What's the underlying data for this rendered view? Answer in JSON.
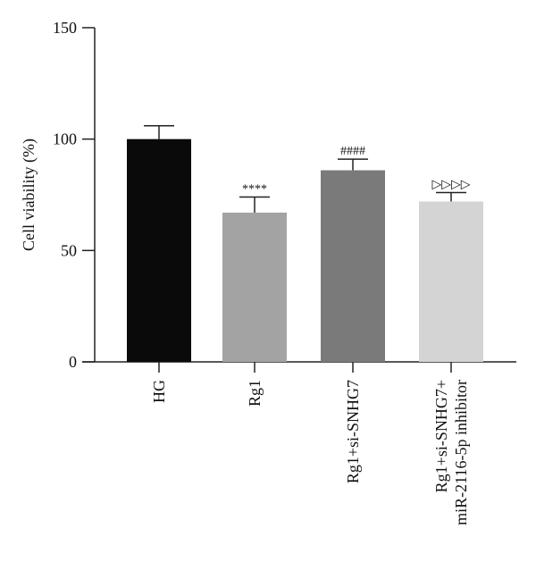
{
  "chart_data": {
    "type": "bar",
    "ylabel": "Cell viability (%)",
    "ylim": [
      0,
      150
    ],
    "yticks": [
      0,
      50,
      100,
      150
    ],
    "categories": [
      [
        "HG"
      ],
      [
        "Rg1"
      ],
      [
        "Rg1+si-SNHG7"
      ],
      [
        "Rg1+si-SNHG7+",
        "miR-2116-5p inhibitor"
      ]
    ],
    "values": [
      100,
      67,
      86,
      72
    ],
    "errors": [
      6,
      7,
      5,
      4
    ],
    "annotations": [
      "",
      "****",
      "####",
      "▷▷▷▷"
    ],
    "colors": [
      "#0a0a0a",
      "#a3a3a3",
      "#7a7a7a",
      "#d4d4d4"
    ],
    "grid": false,
    "legend": false
  }
}
